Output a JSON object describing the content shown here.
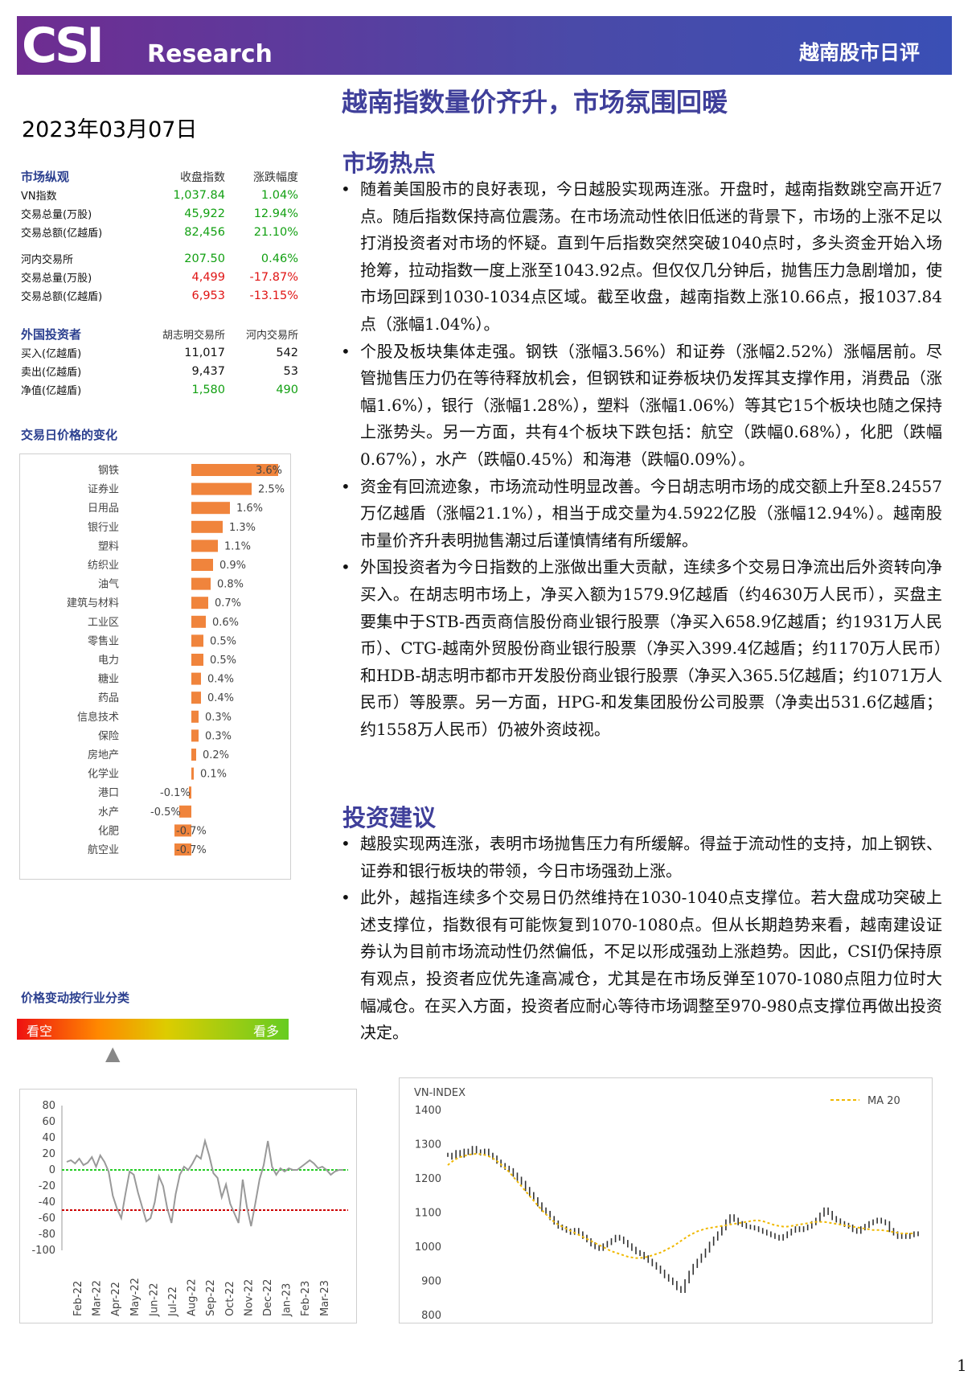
{
  "header": {
    "logo_csi": "CSI",
    "logo_research": "Research",
    "title": "越南股市日评"
  },
  "main_title": "越南指数量价齐升，市场氛围回暖",
  "date": "2023年03月07日",
  "market_overview": {
    "heading": "市场纵观",
    "col_close": "收盘指数",
    "col_change": "涨跌幅度",
    "hose_rows": [
      {
        "label": "VN指数",
        "value": "1,037.84",
        "change": "1.04%",
        "dir": "pos"
      },
      {
        "label": "交易总量(万股)",
        "value": "45,922",
        "change": "12.94%",
        "dir": "pos"
      },
      {
        "label": "交易总额(亿越盾)",
        "value": "82,456",
        "change": "21.10%",
        "dir": "pos"
      }
    ],
    "hnx_rows": [
      {
        "label": "河内交易所",
        "value": "207.50",
        "change": "0.46%",
        "dir": "pos"
      },
      {
        "label": "交易总量(万股)",
        "value": "4,499",
        "change": "-17.87%",
        "dir": "neg"
      },
      {
        "label": "交易总额(亿越盾)",
        "value": "6,953",
        "change": "-13.15%",
        "dir": "neg"
      }
    ]
  },
  "foreign": {
    "heading": "外国投资者",
    "col_hose": "胡志明交易所",
    "col_hnx": "河内交易所",
    "rows": [
      {
        "label": "买入(亿越盾)",
        "hose": "11,017",
        "hnx": "542",
        "dir": ""
      },
      {
        "label": "卖出(亿越盾)",
        "hose": "9,437",
        "hnx": "53",
        "dir": ""
      },
      {
        "label": "净值(亿越盾)",
        "hose": "1,580",
        "hnx": "490",
        "dir": "pos"
      }
    ]
  },
  "sector_chart_title": "交易日价格的变化",
  "sentiment": {
    "title": "价格变动按行业分类",
    "bear": "看空",
    "bull": "看多",
    "pointer": "▲"
  },
  "chart_data": [
    {
      "type": "bar",
      "orientation": "horizontal",
      "categories": [
        "钢铁",
        "证券业",
        "日用品",
        "银行业",
        "塑料",
        "纺织业",
        "油气",
        "建筑与材料",
        "工业区",
        "零售业",
        "电力",
        "糖业",
        "药品",
        "信息技术",
        "保险",
        "房地产",
        "化学业",
        "港口",
        "水产",
        "化肥",
        "航空业"
      ],
      "values": [
        3.6,
        2.5,
        1.6,
        1.3,
        1.1,
        0.9,
        0.8,
        0.7,
        0.6,
        0.5,
        0.5,
        0.4,
        0.4,
        0.3,
        0.3,
        0.2,
        0.1,
        -0.1,
        -0.5,
        -0.7,
        -0.7
      ],
      "labels": [
        "3.6%",
        "2.5%",
        "1.6%",
        "1.3%",
        "1.1%",
        "0.9%",
        "0.8%",
        "0.7%",
        "0.6%",
        "0.5%",
        "0.5%",
        "0.4%",
        "0.4%",
        "0.3%",
        "0.3%",
        "0.2%",
        "0.1%",
        "-0.1%",
        "-0.5%",
        "-0.7%",
        "-0.7%"
      ],
      "color": "#f0843c"
    },
    {
      "type": "line",
      "yticks": [
        "80",
        "60",
        "40",
        "20",
        "0",
        "-20",
        "-40",
        "-60",
        "-80",
        "-100"
      ],
      "ylim": [
        -100,
        80
      ],
      "xticks": [
        "Feb-22",
        "Mar-22",
        "Apr-22",
        "May-22",
        "Jun-22",
        "Jul-22",
        "Aug-22",
        "Sep-22",
        "Oct-22",
        "Nov-22",
        "Dec-22",
        "Jan-23",
        "Feb-23",
        "Mar-23"
      ],
      "reference_lines": [
        {
          "value": 0,
          "color": "#22cc22"
        },
        {
          "value": -50,
          "color": "#cc0000"
        }
      ],
      "values": [
        10,
        12,
        8,
        14,
        6,
        9,
        16,
        4,
        18,
        10,
        -2,
        -32,
        -48,
        -60,
        -30,
        -2,
        -6,
        -28,
        -46,
        -64,
        -60,
        -40,
        -8,
        -20,
        -48,
        -66,
        -30,
        -6,
        4,
        0,
        8,
        18,
        14,
        36,
        18,
        -4,
        -10,
        -34,
        -18,
        -42,
        -54,
        -66,
        -12,
        -46,
        -70,
        -42,
        -12,
        6,
        36,
        4,
        -6,
        2,
        -2,
        2,
        0,
        0,
        4,
        8,
        12,
        8,
        2,
        4,
        0,
        -6,
        -2,
        0,
        0
      ]
    },
    {
      "type": "line",
      "title": "VN-INDEX",
      "legend": "MA 20",
      "yticks": [
        "1400",
        "1300",
        "1200",
        "1100",
        "1000",
        "900",
        "800"
      ],
      "ylim": [
        800,
        1400
      ],
      "series": [
        {
          "values": [
            1270,
            1262,
            1278,
            1268,
            1282,
            1276,
            1290,
            1280,
            1274,
            1282,
            1270,
            1262,
            1250,
            1240,
            1232,
            1225,
            1212,
            1200,
            1188,
            1170,
            1155,
            1140,
            1125,
            1110,
            1100,
            1085,
            1072,
            1060,
            1055,
            1048,
            1042,
            1050,
            1040,
            1030,
            1020,
            1008,
            1000,
            995,
            1005,
            1012,
            1020,
            1030,
            1025,
            1015,
            1005,
            995,
            985,
            980,
            970,
            960,
            950,
            940,
            928,
            915,
            905,
            895,
            880,
            872,
            900,
            925,
            945,
            960,
            975,
            990,
            1010,
            1025,
            1040,
            1055,
            1075,
            1090,
            1080,
            1070,
            1065,
            1060,
            1058,
            1055,
            1050,
            1045,
            1040,
            1035,
            1030,
            1025,
            1032,
            1040,
            1048,
            1055,
            1050,
            1055,
            1060,
            1070,
            1080,
            1095,
            1110,
            1100,
            1085,
            1078,
            1070,
            1065,
            1060,
            1050,
            1045,
            1055,
            1062,
            1070,
            1075,
            1080,
            1075,
            1070,
            1050,
            1040,
            1030,
            1035,
            1030,
            1035,
            1040,
            1038
          ]
        },
        {
          "name": "MA 20",
          "values": [
            1240,
            1250,
            1258,
            1263,
            1267,
            1270,
            1272,
            1273,
            1272,
            1270,
            1266,
            1260,
            1252,
            1242,
            1232,
            1220,
            1206,
            1192,
            1178,
            1164,
            1150,
            1136,
            1122,
            1108,
            1096,
            1084,
            1074,
            1066,
            1060,
            1054,
            1048,
            1042,
            1036,
            1030,
            1024,
            1018,
            1012,
            1006,
            1000,
            994,
            988,
            984,
            980,
            976,
            972,
            970,
            968,
            968,
            970,
            972,
            976,
            980,
            984,
            990,
            996,
            1002,
            1010,
            1018,
            1026,
            1034,
            1040,
            1046,
            1050,
            1054,
            1056,
            1058,
            1060,
            1062,
            1064,
            1066,
            1068,
            1070,
            1072,
            1074,
            1076,
            1078,
            1078,
            1076,
            1072,
            1068,
            1064,
            1062,
            1060,
            1060,
            1062,
            1064,
            1066,
            1068,
            1070,
            1072,
            1074,
            1074,
            1074,
            1072,
            1070,
            1068,
            1066,
            1064,
            1062,
            1060,
            1058,
            1056,
            1054,
            1052,
            1050,
            1050,
            1050,
            1048,
            1046,
            1044,
            1042,
            1040,
            1040,
            1040,
            1040
          ]
        }
      ],
      "colors": {
        "price": "#333333",
        "ma": "#f0b800"
      }
    }
  ],
  "hotspots": {
    "heading": "市场热点",
    "items": [
      "随着美国股市的良好表现，今日越股实现两连涨。开盘时，越南指数跳空高开近7点。随后指数保持高位震荡。在市场流动性依旧低迷的背景下，市场的上涨不足以打消投资者对市场的怀疑。直到午后指数突然突破1040点时，多头资金开始入场抢筹，拉动指数一度上涨至1043.92点。但仅仅几分钟后，抛售压力急剧增加，使市场回踩到1030-1034点区域。截至收盘，越南指数上涨10.66点，报1037.84点（涨幅1.04%）。",
      "个股及板块集体走强。钢铁（涨幅3.56%）和证券（涨幅2.52%）涨幅居前。尽管抛售压力仍在等待释放机会，但钢铁和证券板块仍发挥其支撑作用，消费品（涨幅1.6%），银行（涨幅1.28%），塑料（涨幅1.06%）等其它15个板块也随之保持上涨势头。另一方面，共有4个板块下跌包括：航空（跌幅0.68%），化肥（跌幅0.67%），水产（跌幅0.45%）和海港（跌幅0.09%）。",
      "资金有回流迹象，市场流动性明显改善。今日胡志明市场的成交额上升至8.24557万亿越盾（涨幅21.1%），相当于成交量为4.5922亿股（涨幅12.94%）。越南股市量价齐升表明抛售潮过后谨慎情绪有所缓解。",
      "外国投资者为今日指数的上涨做出重大贡献，连续多个交易日净流出后外资转向净买入。在胡志明市场上，净买入额为1579.9亿越盾（约4630万人民币），买盘主要集中于STB-西贡商信股份商业银行股票（净买入658.9亿越盾；约1931万人民币）、CTG-越南外贸股份商业银行股票（净买入399.4亿越盾；约1170万人民币）和HDB-胡志明市都市开发股份商业银行股票（净买入365.5亿越盾；约1071万人民币）等股票。另一方面，HPG-和发集团股份公司股票（净卖出531.6亿越盾；约1558万人民币）仍被外资歧视。"
    ]
  },
  "advice": {
    "heading": "投资建议",
    "items": [
      "越股实现两连涨，表明市场抛售压力有所缓解。得益于流动性的支持，加上钢铁、证券和银行板块的带领，今日市场强劲上涨。",
      "此外，越指连续多个交易日仍然维持在1030-1040点支撑位。若大盘成功突破上述支撑位，指数很有可能恢复到1070-1080点。但从长期趋势来看，越南建设证券认为目前市场流动性仍然偏低，不足以形成强劲上涨趋势。因此，CSI仍保持原有观点，投资者应优先逢高减仓，尤其是在市场反弹至1070-1080点阻力位时大幅减仓。在买入方面，投资者应耐心等待市场调整至970-980点支撑位再做出投资决定。"
    ]
  },
  "page_number": "1"
}
